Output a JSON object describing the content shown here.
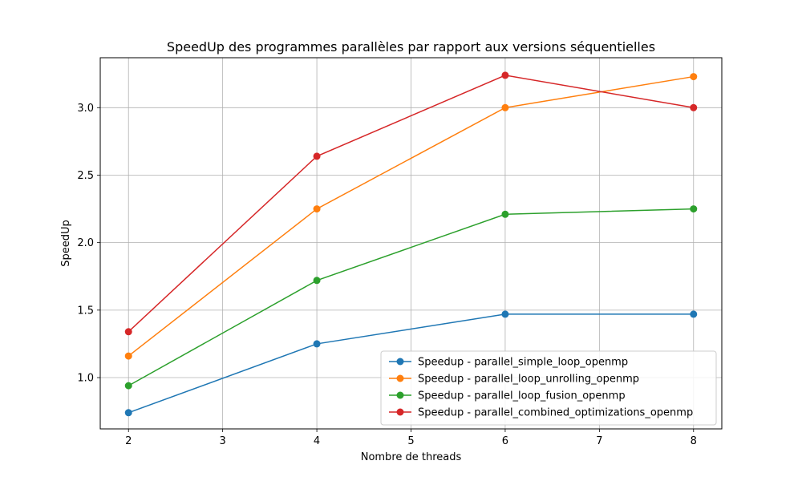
{
  "chart_data": {
    "type": "line",
    "title": "SpeedUp des programmes parallèles par rapport aux versions séquentielles",
    "xlabel": "Nombre de threads",
    "ylabel": "SpeedUp",
    "x": [
      2,
      4,
      6,
      8
    ],
    "xlim": [
      1.7,
      8.3
    ],
    "ylim": [
      0.62,
      3.37
    ],
    "xticks": [
      2,
      3,
      4,
      5,
      6,
      7,
      8
    ],
    "xtick_labels": [
      "2",
      "3",
      "4",
      "5",
      "6",
      "7",
      "8"
    ],
    "yticks": [
      1.0,
      1.5,
      2.0,
      2.5,
      3.0
    ],
    "ytick_labels": [
      "1.0",
      "1.5",
      "2.0",
      "2.5",
      "3.0"
    ],
    "grid": true,
    "legend_position": "lower-right",
    "series": [
      {
        "name": "Speedup - parallel_simple_loop_openmp",
        "color": "#1f77b4",
        "values": [
          0.74,
          1.25,
          1.47,
          1.47
        ]
      },
      {
        "name": "Speedup - parallel_loop_unrolling_openmp",
        "color": "#ff7f0e",
        "values": [
          1.16,
          2.25,
          3.0,
          3.23
        ]
      },
      {
        "name": "Speedup - parallel_loop_fusion_openmp",
        "color": "#2ca02c",
        "values": [
          0.94,
          1.72,
          2.21,
          2.25
        ]
      },
      {
        "name": "Speedup - parallel_combined_optimizations_openmp",
        "color": "#d62728",
        "values": [
          1.34,
          2.64,
          3.24,
          3.0
        ]
      }
    ]
  }
}
